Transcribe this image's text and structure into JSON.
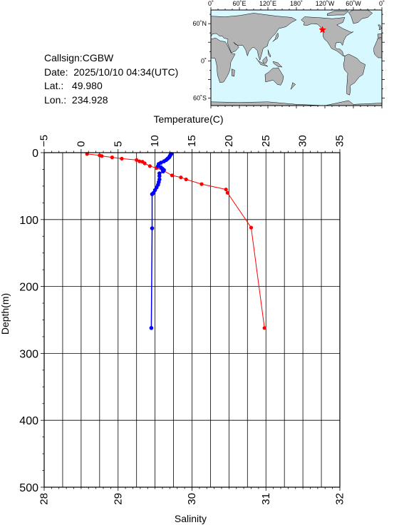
{
  "station": {
    "callsign_label": "Callsign:",
    "callsign": "CGBW",
    "date_label": "Date:",
    "date": "2025/10/10 04:34(UTC)",
    "lat_label": "Lat.:",
    "lat": "49.980",
    "lon_label": "Lon.:",
    "lon": "234.928"
  },
  "map": {
    "lon_labels": [
      "0˚",
      "60˚E",
      "120˚E",
      "180˚",
      "120˚W",
      "60˚W",
      "0˚"
    ],
    "lat_labels": [
      "60˚N",
      "0˚",
      "60˚S"
    ],
    "ocean_color": "#d8f8ff",
    "land_color": "#b4b4b4",
    "marker_color": "#ff0000",
    "marker_lon": 234.928,
    "marker_lat": 49.98
  },
  "chart_data": {
    "type": "line",
    "ylabel": "Depth(m)",
    "ylim": [
      500,
      0
    ],
    "yticks": [
      "0",
      "100",
      "200",
      "300",
      "400",
      "500"
    ],
    "x_top_label": "Temperature(C)",
    "x_top_lim": [
      -5,
      35
    ],
    "x_top_ticks": [
      "−5",
      "0",
      "5",
      "10",
      "15",
      "20",
      "25",
      "30",
      "35"
    ],
    "x_bottom_label": "Salinity",
    "x_bottom_lim": [
      28,
      32
    ],
    "x_bottom_ticks": [
      "28",
      "29",
      "30",
      "31",
      "32"
    ],
    "grid": true,
    "series": [
      {
        "axis": "top",
        "color": "#ff0000",
        "points": [
          [
            0.8,
            2
          ],
          [
            2.5,
            4
          ],
          [
            2.8,
            5
          ],
          [
            4.2,
            7
          ],
          [
            5.5,
            9
          ],
          [
            7.5,
            11
          ],
          [
            7.9,
            13
          ],
          [
            8.3,
            13.5
          ],
          [
            8.6,
            16
          ],
          [
            9.3,
            20
          ],
          [
            10.2,
            23
          ],
          [
            11.0,
            26
          ],
          [
            12.3,
            34
          ],
          [
            13.5,
            37
          ],
          [
            14.2,
            40
          ],
          [
            16.3,
            47
          ],
          [
            19.6,
            55
          ],
          [
            19.8,
            60
          ],
          [
            23.0,
            112
          ],
          [
            24.8,
            262
          ]
        ]
      },
      {
        "axis": "bottom",
        "color": "#0000ff",
        "points": [
          [
            29.72,
            2
          ],
          [
            29.71,
            3
          ],
          [
            29.7,
            5
          ],
          [
            29.69,
            7
          ],
          [
            29.67,
            9
          ],
          [
            29.65,
            11
          ],
          [
            29.62,
            13
          ],
          [
            29.58,
            15
          ],
          [
            29.55,
            17
          ],
          [
            29.54,
            20
          ],
          [
            29.58,
            22
          ],
          [
            29.6,
            24
          ],
          [
            29.62,
            26
          ],
          [
            29.61,
            28
          ],
          [
            29.56,
            31
          ],
          [
            29.56,
            35
          ],
          [
            29.56,
            40
          ],
          [
            29.55,
            44
          ],
          [
            29.54,
            48
          ],
          [
            29.52,
            52
          ],
          [
            29.5,
            56
          ],
          [
            29.48,
            60
          ],
          [
            29.46,
            62
          ],
          [
            29.46,
            113
          ],
          [
            29.45,
            262
          ]
        ]
      }
    ]
  }
}
